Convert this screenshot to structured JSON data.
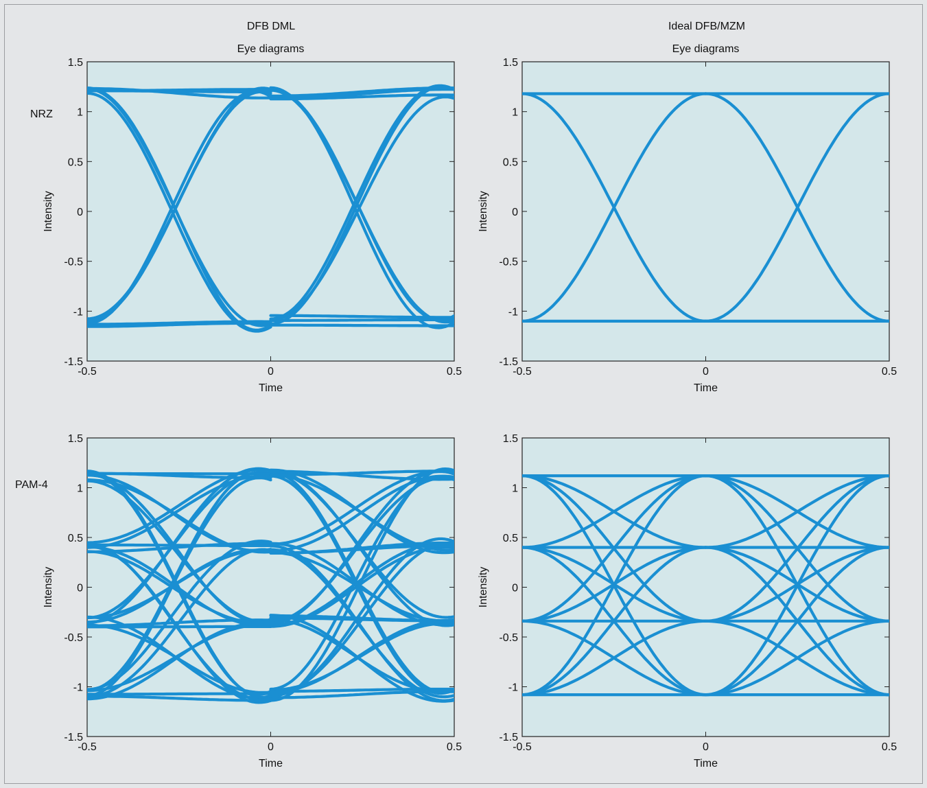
{
  "figure": {
    "column_titles": [
      "DFB DML",
      "Ideal DFB/MZM"
    ],
    "row_labels": [
      "NRZ",
      "PAM-4"
    ],
    "trace_color": "#1a8fd2",
    "plot_background": "#d4e7ea",
    "page_background": "#e4e6e8"
  },
  "chart_data": [
    {
      "id": "dml-nrz",
      "type": "line",
      "title": "Eye diagrams",
      "xlabel": "Time",
      "ylabel": "Intensity",
      "xlim": [
        -0.5,
        0.5
      ],
      "ylim": [
        -1.5,
        1.5
      ],
      "xticks": [
        -0.5,
        0,
        0.5
      ],
      "yticks": [
        -1.5,
        -1,
        -0.5,
        0,
        0.5,
        1,
        1.5
      ],
      "xtick_labels": [
        "-0.5",
        "0",
        "0.5"
      ],
      "ytick_labels": [
        "-1.5",
        "-1",
        "-0.5",
        "0",
        "0.5",
        "1",
        "1.5"
      ],
      "levels": [
        -1.1,
        1.18
      ],
      "crossings": [
        -0.5,
        0,
        0.5
      ],
      "overshoot": 0.28,
      "ripple": 0.12,
      "grid": false,
      "legend": "none"
    },
    {
      "id": "mzm-nrz",
      "type": "line",
      "title": "Eye diagrams",
      "xlabel": "Time",
      "ylabel": "Intensity",
      "xlim": [
        -0.5,
        0.5
      ],
      "ylim": [
        -1.5,
        1.5
      ],
      "xticks": [
        -0.5,
        0,
        0.5
      ],
      "yticks": [
        -1.5,
        -1,
        -0.5,
        0,
        0.5,
        1,
        1.5
      ],
      "xtick_labels": [
        "-0.5",
        "0",
        "0.5"
      ],
      "ytick_labels": [
        "-1.5",
        "-1",
        "-0.5",
        "0",
        "0.5",
        "1",
        "1.5"
      ],
      "levels": [
        -1.1,
        1.18
      ],
      "crossings": [
        -0.5,
        0,
        0.5
      ],
      "overshoot": 0,
      "ripple": 0,
      "grid": false,
      "legend": "none"
    },
    {
      "id": "dml-pam4",
      "type": "line",
      "title": "",
      "xlabel": "Time",
      "ylabel": "Intensity",
      "xlim": [
        -0.5,
        0.5
      ],
      "ylim": [
        -1.5,
        1.5
      ],
      "xticks": [
        -0.5,
        0,
        0.5
      ],
      "yticks": [
        -1.5,
        -1,
        -0.5,
        0,
        0.5,
        1,
        1.5
      ],
      "xtick_labels": [
        "-0.5",
        "0",
        "0.5"
      ],
      "ytick_labels": [
        "-1.5",
        "-1",
        "-0.5",
        "0",
        "0.5",
        "1",
        "1.5"
      ],
      "levels": [
        -1.08,
        -0.34,
        0.4,
        1.12
      ],
      "crossings": [
        -0.5,
        0,
        0.5
      ],
      "overshoot": 0.25,
      "ripple": 0.12,
      "grid": false,
      "legend": "none"
    },
    {
      "id": "mzm-pam4",
      "type": "line",
      "title": "",
      "xlabel": "Time",
      "ylabel": "Intensity",
      "xlim": [
        -0.5,
        0.5
      ],
      "ylim": [
        -1.5,
        1.5
      ],
      "xticks": [
        -0.5,
        0,
        0.5
      ],
      "yticks": [
        -1.5,
        -1,
        -0.5,
        0,
        0.5,
        1,
        1.5
      ],
      "xtick_labels": [
        "-0.5",
        "0",
        "0.5"
      ],
      "ytick_labels": [
        "-1.5",
        "-1",
        "-0.5",
        "0",
        "0.5",
        "1",
        "1.5"
      ],
      "levels": [
        -1.08,
        -0.34,
        0.4,
        1.12
      ],
      "crossings": [
        -0.5,
        0,
        0.5
      ],
      "overshoot": 0,
      "ripple": 0,
      "grid": false,
      "legend": "none"
    }
  ]
}
